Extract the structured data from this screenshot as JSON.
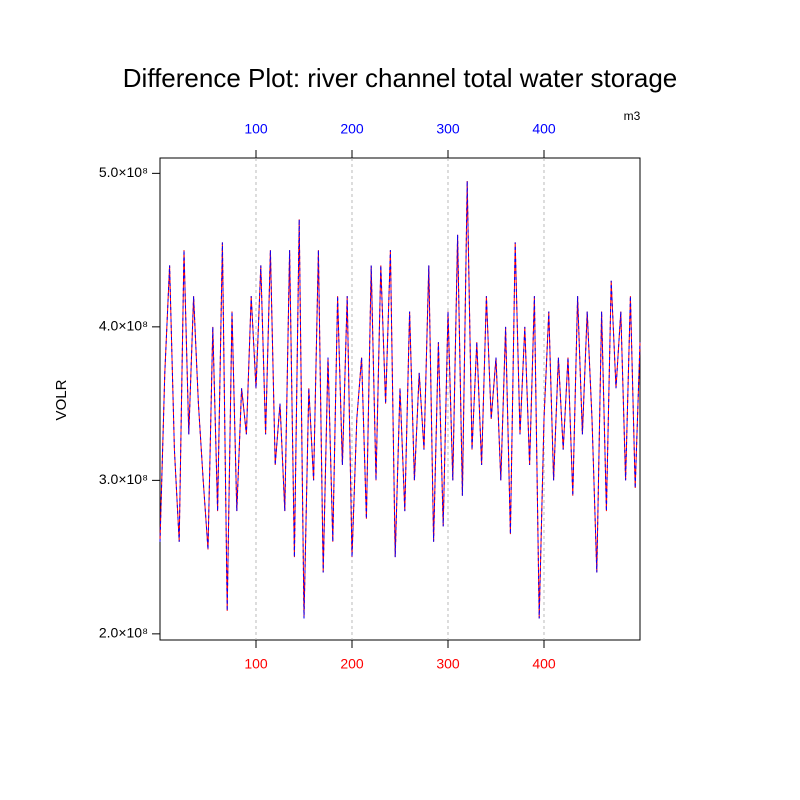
{
  "chart_data": {
    "type": "line",
    "title": "Difference Plot: river channel total water storage",
    "y_label": "VOLR",
    "units": "m3",
    "xlim": [
      0,
      500
    ],
    "ylim": [
      196000000,
      510000000
    ],
    "xticks": [
      100,
      200,
      300,
      400
    ],
    "xtick_color": "#ff0000",
    "x2ticks": [
      100,
      200,
      300,
      400
    ],
    "x2tick_color": "#0000ff",
    "yticks": [
      {
        "value": 200000000,
        "label": "2.0×10⁸"
      },
      {
        "value": 300000000,
        "label": "3.0×10⁸"
      },
      {
        "value": 400000000,
        "label": "4.0×10⁸"
      },
      {
        "value": 500000000,
        "label": "5.0×10⁸"
      }
    ],
    "grid": true,
    "x": [
      0,
      5,
      10,
      15,
      20,
      25,
      30,
      35,
      40,
      45,
      50,
      55,
      60,
      65,
      70,
      75,
      80,
      85,
      90,
      95,
      100,
      105,
      110,
      115,
      120,
      125,
      130,
      135,
      140,
      145,
      150,
      155,
      160,
      165,
      170,
      175,
      180,
      185,
      190,
      195,
      200,
      205,
      210,
      215,
      220,
      225,
      230,
      235,
      240,
      245,
      250,
      255,
      260,
      265,
      270,
      275,
      280,
      285,
      290,
      295,
      300,
      305,
      310,
      315,
      320,
      325,
      330,
      335,
      340,
      345,
      350,
      355,
      360,
      365,
      370,
      375,
      380,
      385,
      390,
      395,
      400,
      405,
      410,
      415,
      420,
      425,
      430,
      435,
      440,
      445,
      450,
      455,
      460,
      465,
      470,
      475,
      480,
      485,
      490,
      495,
      500
    ],
    "series": [
      {
        "color": "#ff0000",
        "values": [
          260000000,
          370000000,
          440000000,
          320000000,
          260000000,
          450000000,
          330000000,
          420000000,
          350000000,
          300000000,
          255000000,
          400000000,
          280000000,
          455000000,
          215000000,
          410000000,
          280000000,
          360000000,
          330000000,
          420000000,
          360000000,
          440000000,
          330000000,
          450000000,
          310000000,
          350000000,
          280000000,
          450000000,
          250000000,
          470000000,
          210000000,
          360000000,
          300000000,
          450000000,
          240000000,
          380000000,
          260000000,
          420000000,
          310000000,
          420000000,
          250000000,
          340000000,
          380000000,
          275000000,
          440000000,
          300000000,
          440000000,
          350000000,
          450000000,
          250000000,
          360000000,
          280000000,
          410000000,
          300000000,
          370000000,
          320000000,
          440000000,
          260000000,
          390000000,
          270000000,
          410000000,
          300000000,
          460000000,
          290000000,
          495000000,
          320000000,
          390000000,
          310000000,
          420000000,
          340000000,
          380000000,
          300000000,
          400000000,
          265000000,
          455000000,
          330000000,
          400000000,
          310000000,
          420000000,
          210000000,
          340000000,
          410000000,
          300000000,
          380000000,
          320000000,
          380000000,
          290000000,
          420000000,
          330000000,
          410000000,
          340000000,
          240000000,
          410000000,
          280000000,
          430000000,
          360000000,
          410000000,
          300000000,
          420000000,
          295000000,
          390000000
        ]
      },
      {
        "color": "#0000ff",
        "values": [
          260000000,
          370000000,
          440000000,
          320000000,
          260000000,
          450000000,
          330000000,
          420000000,
          350000000,
          300000000,
          255000000,
          400000000,
          280000000,
          455000000,
          215000000,
          410000000,
          280000000,
          360000000,
          330000000,
          420000000,
          360000000,
          440000000,
          330000000,
          450000000,
          310000000,
          350000000,
          280000000,
          450000000,
          250000000,
          470000000,
          210000000,
          360000000,
          300000000,
          450000000,
          240000000,
          380000000,
          260000000,
          420000000,
          310000000,
          420000000,
          250000000,
          340000000,
          380000000,
          275000000,
          440000000,
          300000000,
          440000000,
          350000000,
          450000000,
          250000000,
          360000000,
          280000000,
          410000000,
          300000000,
          370000000,
          320000000,
          440000000,
          260000000,
          390000000,
          270000000,
          410000000,
          300000000,
          460000000,
          290000000,
          495000000,
          320000000,
          390000000,
          310000000,
          420000000,
          340000000,
          380000000,
          300000000,
          400000000,
          265000000,
          455000000,
          330000000,
          400000000,
          310000000,
          420000000,
          210000000,
          340000000,
          410000000,
          300000000,
          380000000,
          320000000,
          380000000,
          290000000,
          420000000,
          330000000,
          410000000,
          340000000,
          240000000,
          410000000,
          280000000,
          430000000,
          360000000,
          410000000,
          300000000,
          420000000,
          295000000,
          390000000
        ]
      }
    ]
  }
}
